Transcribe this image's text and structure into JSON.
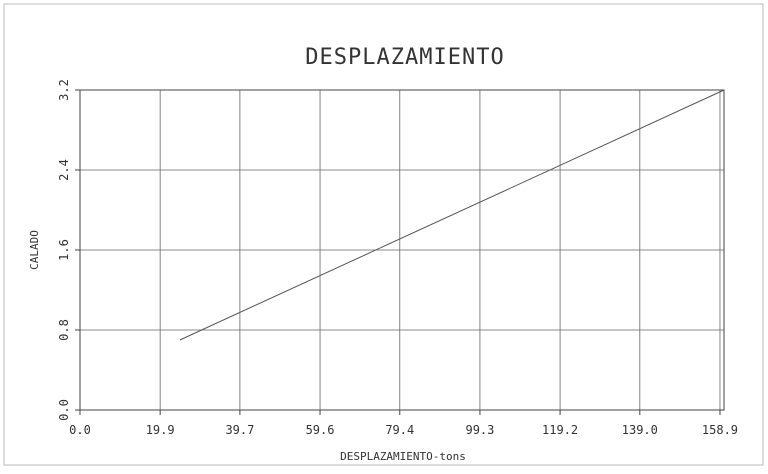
{
  "chart_data": {
    "type": "line",
    "title": "DESPLAZAMIENTO",
    "xlabel": "DESPLAZAMIENTO-tons",
    "ylabel": "CALADO",
    "xlim": [
      0.0,
      159.9
    ],
    "ylim": [
      0.0,
      3.2
    ],
    "x_ticks": [
      0.0,
      19.9,
      39.7,
      59.6,
      79.4,
      99.3,
      119.2,
      139.0,
      158.9
    ],
    "x_tick_labels": [
      "0.0",
      "19.9",
      "39.7",
      "59.6",
      "79.4",
      "99.3",
      "119.2",
      "139.0",
      "158.9"
    ],
    "y_ticks": [
      0.0,
      0.8,
      1.6,
      2.4,
      3.2
    ],
    "y_tick_labels": [
      "0.0",
      "0.8",
      "1.6",
      "2.4",
      "3.2"
    ],
    "grid": true,
    "legend": "none",
    "line_color": "#555555",
    "series": [
      {
        "x": [
          24.8,
          159.9
        ],
        "y": [
          0.7,
          3.2
        ]
      }
    ]
  }
}
